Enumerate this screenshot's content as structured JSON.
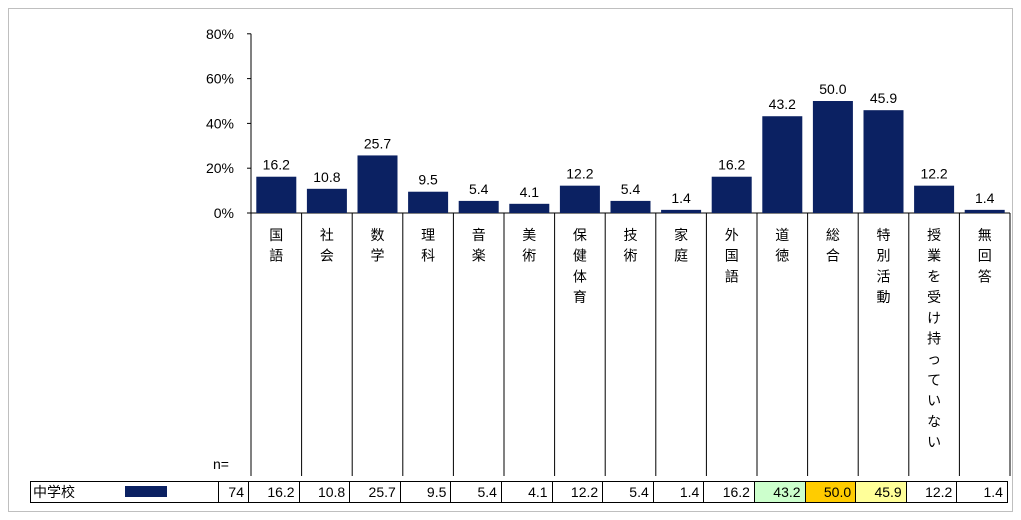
{
  "chart_data": {
    "type": "bar",
    "categories": [
      [
        "国",
        "語"
      ],
      [
        "社",
        "会"
      ],
      [
        "数",
        "学"
      ],
      [
        "理",
        "科"
      ],
      [
        "音",
        "楽"
      ],
      [
        "美",
        "術"
      ],
      [
        "保",
        "健",
        "体",
        "育"
      ],
      [
        "技",
        "術"
      ],
      [
        "家",
        "庭"
      ],
      [
        "外",
        "国",
        "語"
      ],
      [
        "道",
        "徳"
      ],
      [
        "総",
        "合"
      ],
      [
        "特",
        "別",
        "活",
        "動"
      ],
      [
        "授",
        "業",
        "を",
        "受",
        "け",
        "持",
        "っ",
        "て",
        "い",
        "な",
        "い"
      ],
      [
        "無",
        "回",
        "答"
      ]
    ],
    "series": [
      {
        "name": "中学校",
        "n": "74",
        "values": [
          16.2,
          10.8,
          25.7,
          9.5,
          5.4,
          4.1,
          12.2,
          5.4,
          1.4,
          16.2,
          43.2,
          50.0,
          45.9,
          12.2,
          1.4
        ],
        "value_labels": [
          "16.2",
          "10.8",
          "25.7",
          "9.5",
          "5.4",
          "4.1",
          "12.2",
          "5.4",
          "1.4",
          "16.2",
          "43.2",
          "50.0",
          "45.9",
          "12.2",
          "1.4"
        ]
      }
    ],
    "yticks": [
      "0%",
      "20%",
      "40%",
      "60%",
      "80%"
    ],
    "ylim": [
      0,
      80
    ],
    "n_label": "n=",
    "bar_color": "#0b2162",
    "highlight_colors": {
      "10": "#ccffcc",
      "11": "#ffcc00",
      "12": "#ffff99"
    }
  }
}
